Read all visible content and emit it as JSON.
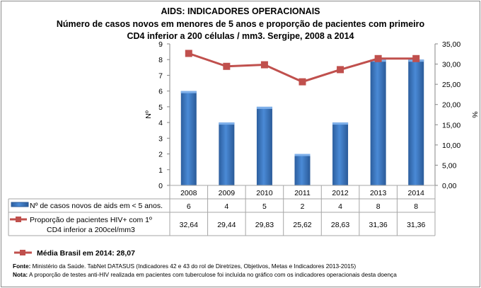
{
  "chart_data": {
    "type": "bar+line",
    "title": "AIDS: INDICADORES OPERACIONAIS",
    "subtitle_line1": "Número de casos novos em menores de 5 anos e proporção de pacientes com primeiro",
    "subtitle_line2": "CD4 inferior a 200 células / mm3. Sergipe, 2008 a 2014",
    "categories": [
      "2008",
      "2009",
      "2010",
      "2011",
      "2012",
      "2013",
      "2014"
    ],
    "ylabel_left": "Nº",
    "ylabel_right": "%",
    "ylim_left": [
      0,
      9
    ],
    "ylim_right": [
      0,
      35
    ],
    "yticks_left": [
      "0",
      "1",
      "2",
      "3",
      "4",
      "5",
      "6",
      "7",
      "8",
      "9"
    ],
    "yticks_right": [
      "0,00",
      "5,00",
      "10,00",
      "15,00",
      "20,00",
      "25,00",
      "30,00",
      "35,00"
    ],
    "series": [
      {
        "name": "Nº de casos novos de aids em < 5 anos.",
        "type": "bar",
        "axis": "left",
        "color": "#3f7fcf",
        "values": [
          6,
          4,
          5,
          2,
          4,
          8,
          8
        ],
        "labels": [
          "6",
          "4",
          "5",
          "2",
          "4",
          "8",
          "8"
        ]
      },
      {
        "name_line1": "Proporção de pacientes HIV+ com 1º",
        "name_line2": "CD4 inferior a 200cel/mm3",
        "type": "line",
        "axis": "right",
        "color": "#c0504d",
        "values": [
          32.64,
          29.44,
          29.83,
          25.62,
          28.63,
          31.36,
          31.36
        ],
        "labels": [
          "32,64",
          "29,44",
          "29,83",
          "25,62",
          "28,63",
          "31,36",
          "31,36"
        ]
      }
    ],
    "data_table": true,
    "legend_extra": "Média Brasil em 2014: 28,07",
    "legend_extra_color": "#c0504d"
  },
  "footer": {
    "fonte_label": "Fonte:",
    "fonte_text": " Ministério da Saúde. TabNet DATASUS (Indicadores 42 e 43 do rol de Diretrizes, Objetivos, Metas e Indicadores 2013-2015)",
    "nota_label": "Nota:",
    "nota_text": " A proporção de testes anti-HIV realizada em pacientes com tuberculose foi incluída no gráfico com os indicadores operacionais desta doença"
  }
}
